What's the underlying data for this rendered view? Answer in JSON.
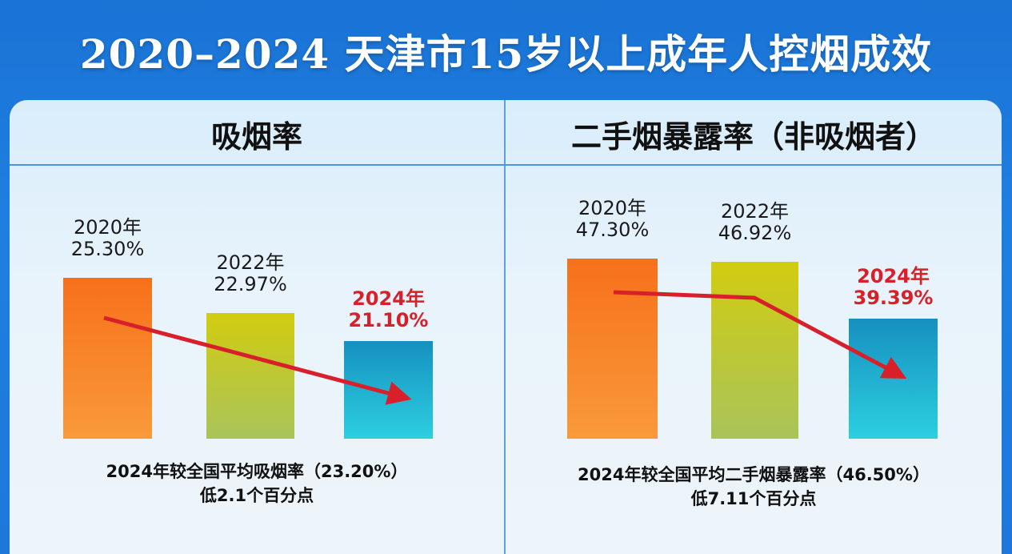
{
  "title": "2020–2024 天津市15岁以上成年人控烟成效",
  "chart_data": [
    {
      "type": "bar",
      "title": "吸烟率",
      "categories": [
        "2020年",
        "2022年",
        "2024年"
      ],
      "values": [
        25.3,
        22.97,
        21.1
      ],
      "value_labels": [
        "25.30%",
        "22.97%",
        "21.10%"
      ],
      "highlight": "2024年",
      "ylim": [
        14.66,
        26.9
      ],
      "colors": [
        "#f77b1e",
        "#c9cc23",
        "#1a9bc8"
      ],
      "trend_arrow_color": "#d8202a",
      "footnote": [
        "2024年较全国平均吸烟率（23.20%）",
        "低2.1个百分点"
      ]
    },
    {
      "type": "bar",
      "title": "二手烟暴露率（非吸烟者）",
      "categories": [
        "2020年",
        "2022年",
        "2024年"
      ],
      "values": [
        47.3,
        46.92,
        39.39
      ],
      "value_labels": [
        "47.30%",
        "46.92%",
        "39.39%"
      ],
      "highlight": "2024年",
      "ylim": [
        23.4,
        47.97
      ],
      "colors": [
        "#f77b1e",
        "#c9cc23",
        "#1a9bc8"
      ],
      "trend_arrow_color": "#d8202a",
      "footnote": [
        "2024年较全国平均二手烟暴露率（46.50%）",
        "低7.11个百分点"
      ]
    }
  ]
}
